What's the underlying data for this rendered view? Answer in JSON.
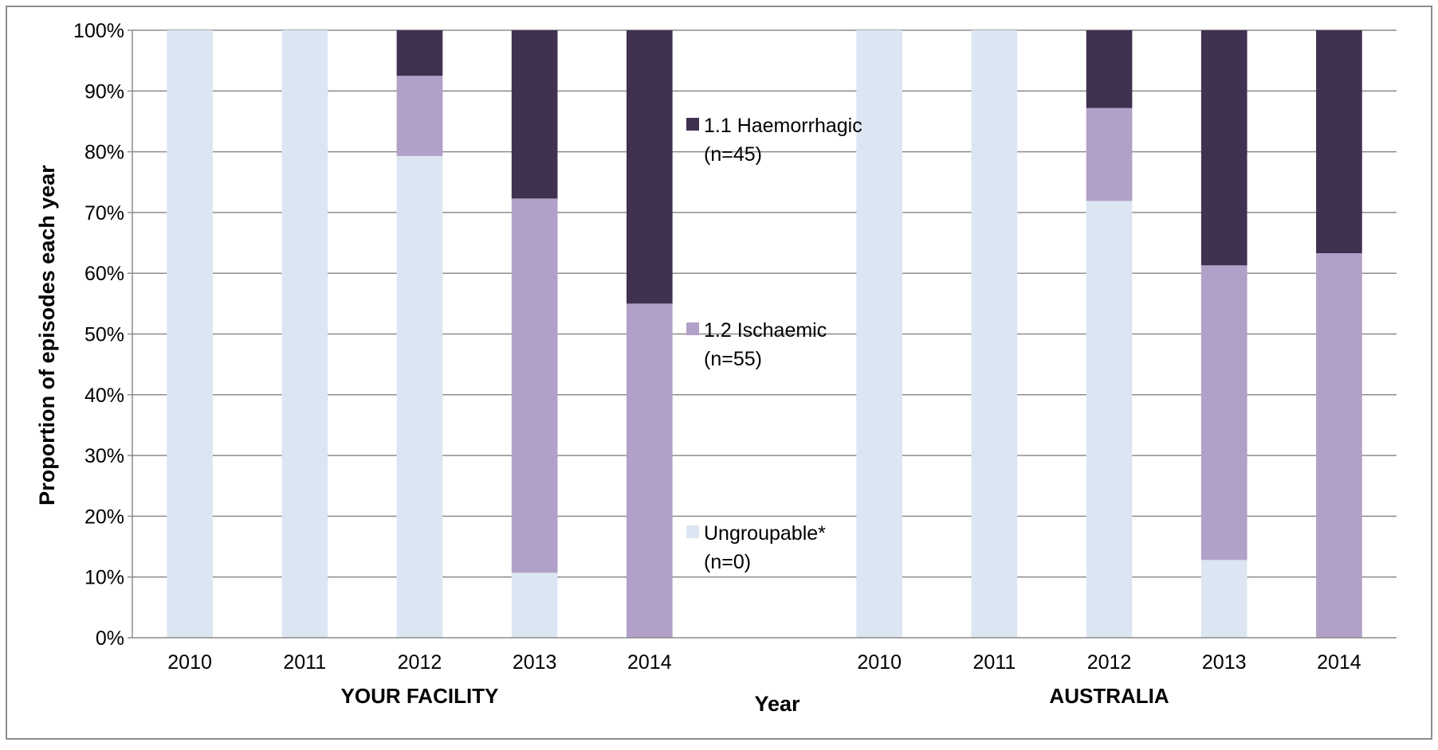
{
  "chart_data": {
    "type": "bar",
    "stacked": true,
    "percent_stacked": true,
    "title": "",
    "xlabel": "Year",
    "ylabel": "Proportion of episodes each year",
    "ylim": [
      0,
      100
    ],
    "y_ticks": [
      "0%",
      "10%",
      "20%",
      "30%",
      "40%",
      "50%",
      "60%",
      "70%",
      "80%",
      "90%",
      "100%"
    ],
    "grid": true,
    "legend_position": "inside-center",
    "groups": [
      {
        "label": "YOUR FACILITY",
        "categories": [
          "2010",
          "2011",
          "2012",
          "2013",
          "2014"
        ]
      },
      {
        "label": "AUSTRALIA",
        "categories": [
          "2010",
          "2011",
          "2012",
          "2013",
          "2014"
        ]
      }
    ],
    "series": [
      {
        "name": "Ungroupable*",
        "legend_line1": "Ungroupable*",
        "legend_line2": "(n=0)",
        "color": "#dce6f2",
        "values": [
          100,
          100,
          79.3,
          10.7,
          0,
          100,
          100,
          71.9,
          12.8,
          0
        ]
      },
      {
        "name": "1.2 Ischaemic",
        "legend_line1": "1.2  Ischaemic",
        "legend_line2": "(n=55)",
        "color": "#b1a0c7",
        "values": [
          0,
          0,
          13.2,
          61.6,
          55,
          0,
          0,
          15.3,
          48.5,
          63.3
        ]
      },
      {
        "name": "1.1 Haemorrhagic",
        "legend_line1": "1.1  Haemorrhagic",
        "legend_line2": "(n=45)",
        "color": "#403151",
        "values": [
          0,
          0,
          7.5,
          27.7,
          45,
          0,
          0,
          12.8,
          38.7,
          36.7
        ]
      }
    ],
    "legend_order": [
      2,
      1,
      0
    ]
  }
}
